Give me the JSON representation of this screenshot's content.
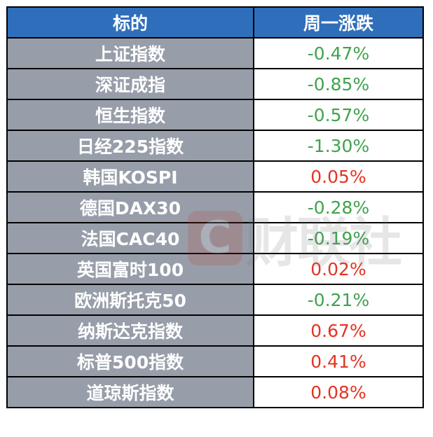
{
  "header": {
    "col1": "标的",
    "col2": "周一涨跌"
  },
  "colors": {
    "header_bg": "#2F6EBA",
    "name_bg": "#979EA9",
    "up": "#E53323",
    "down": "#3FA34D"
  },
  "watermark": {
    "logo_letter": "C",
    "text": "财联社"
  },
  "rows": [
    {
      "name": "上证指数",
      "change": "-0.47%",
      "dir": "down"
    },
    {
      "name": "深证成指",
      "change": "-0.85%",
      "dir": "down"
    },
    {
      "name": "恒生指数",
      "change": "-0.57%",
      "dir": "down"
    },
    {
      "name": "日经225指数",
      "change": "-1.30%",
      "dir": "down"
    },
    {
      "name": "韩国KOSPI",
      "change": "0.05%",
      "dir": "up"
    },
    {
      "name": "德国DAX30",
      "change": "-0.28%",
      "dir": "down"
    },
    {
      "name": "法国CAC40",
      "change": "-0.19%",
      "dir": "down"
    },
    {
      "name": "英国富时100",
      "change": "0.02%",
      "dir": "up"
    },
    {
      "name": "欧洲斯托克50",
      "change": "-0.21%",
      "dir": "down"
    },
    {
      "name": "纳斯达克指数",
      "change": "0.67%",
      "dir": "up"
    },
    {
      "name": "标普500指数",
      "change": "0.41%",
      "dir": "up"
    },
    {
      "name": "道琼斯指数",
      "change": "0.08%",
      "dir": "up"
    }
  ]
}
